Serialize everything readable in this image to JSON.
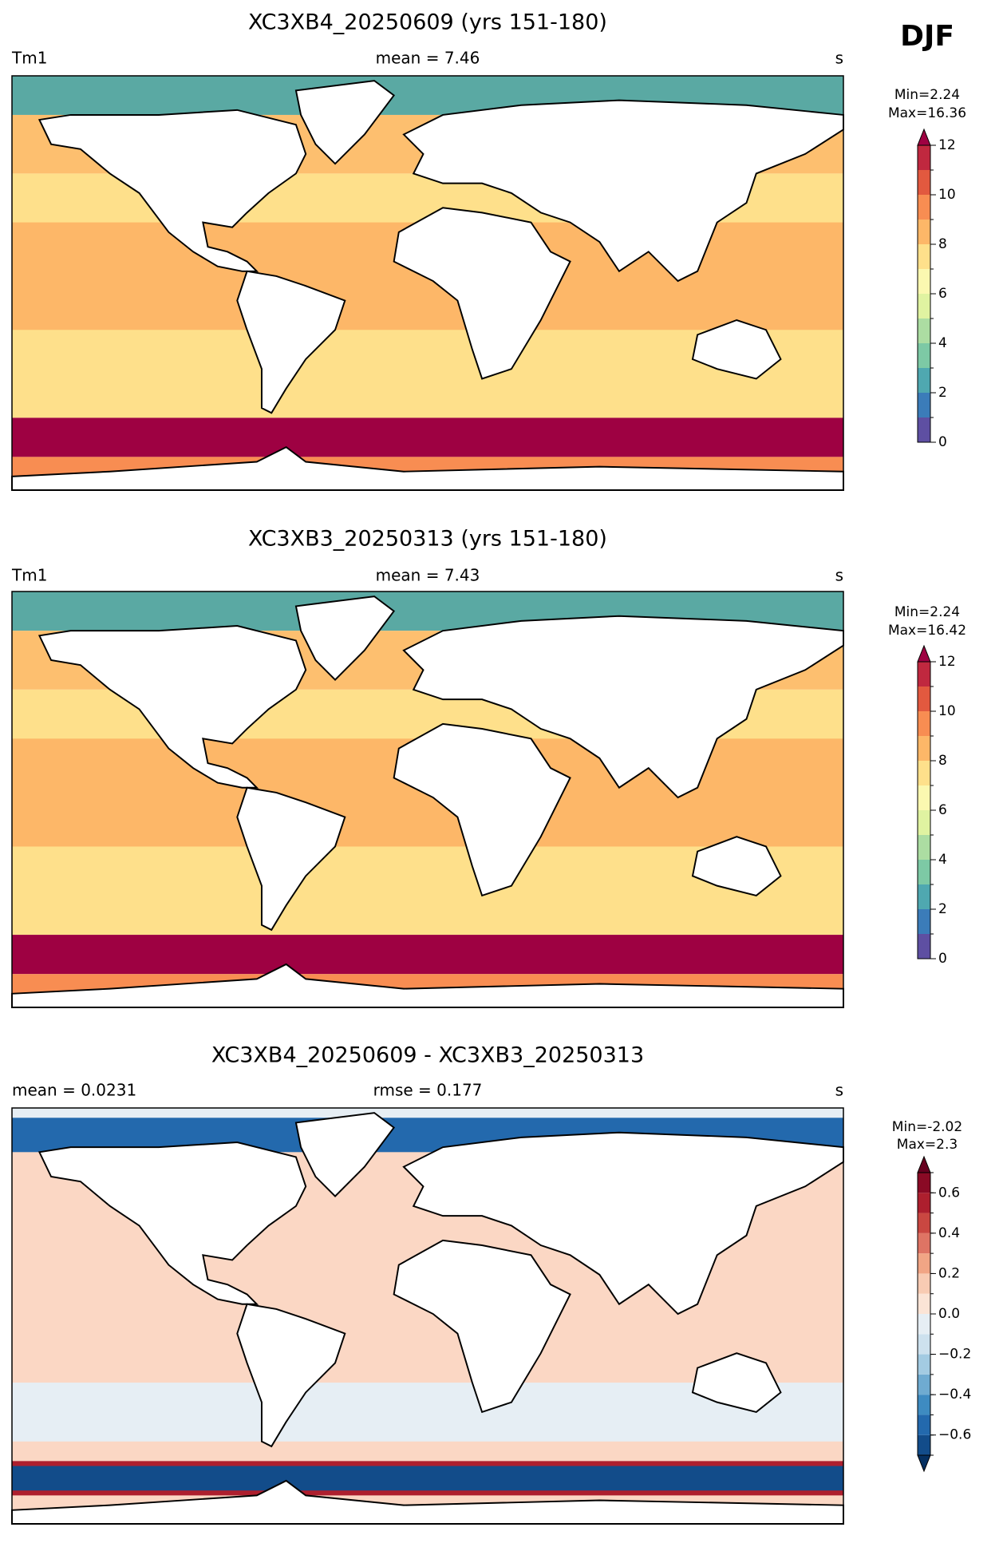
{
  "season": "DJF",
  "panels": [
    {
      "title": "XC3XB4_20250609 (yrs 151-180)",
      "left": "Tm1",
      "center": "mean = 7.46",
      "right": "s",
      "min": "Min=2.24",
      "max": "Max=16.36",
      "colorbar": {
        "lim": [
          0,
          12
        ],
        "ticks": [
          0,
          2,
          4,
          6,
          8,
          10,
          12
        ],
        "levels": [
          0,
          1,
          2,
          3,
          4,
          5,
          6,
          7,
          8,
          9,
          10,
          11,
          12
        ],
        "colors": [
          "#5e4fa2",
          "#3b7cb9",
          "#4fa8b0",
          "#7dc9a5",
          "#acdda2",
          "#e0f3a1",
          "#fbf8b0",
          "#fee08b",
          "#fdb768",
          "#f88d52",
          "#e2593f",
          "#c0283f"
        ],
        "extend": "max",
        "over_color": "#9e0142"
      }
    },
    {
      "title": "XC3XB3_20250313 (yrs 151-180)",
      "left": "Tm1",
      "center": "mean = 7.43",
      "right": "s",
      "min": "Min=2.24",
      "max": "Max=16.42",
      "colorbar": {
        "lim": [
          0,
          12
        ],
        "ticks": [
          0,
          2,
          4,
          6,
          8,
          10,
          12
        ],
        "levels": [
          0,
          1,
          2,
          3,
          4,
          5,
          6,
          7,
          8,
          9,
          10,
          11,
          12
        ],
        "colors": [
          "#5e4fa2",
          "#3b7cb9",
          "#4fa8b0",
          "#7dc9a5",
          "#acdda2",
          "#e0f3a1",
          "#fbf8b0",
          "#fee08b",
          "#fdb768",
          "#f88d52",
          "#e2593f",
          "#c0283f"
        ],
        "extend": "max",
        "over_color": "#9e0142"
      }
    },
    {
      "title": "XC3XB4_20250609 - XC3XB3_20250313",
      "left": "mean = 0.0231",
      "center": "rmse = 0.177",
      "right": "s",
      "min": "Min=-2.02",
      "max": "Max=2.3",
      "colorbar": {
        "lim": [
          -0.7,
          0.7
        ],
        "ticks": [
          {
            "value": -0.6,
            "label": "−0.6"
          },
          {
            "value": -0.4,
            "label": "−0.4"
          },
          {
            "value": -0.2,
            "label": "−0.2"
          },
          {
            "value": 0,
            "label": "0.0"
          },
          0.2,
          0.4,
          0.6
        ],
        "levels": [
          -0.7,
          -0.6,
          -0.5,
          -0.4,
          -0.3,
          -0.2,
          -0.1,
          0,
          0.1,
          0.2,
          0.3,
          0.4,
          0.5,
          0.6,
          0.7
        ],
        "colors": [
          "#124c8a",
          "#2369ad",
          "#3e8bc1",
          "#6fabd1",
          "#a3cbe2",
          "#cde1ee",
          "#e6eef4",
          "#fbe4d6",
          "#f8cbb3",
          "#f1a585",
          "#de7464",
          "#c94741",
          "#ad1f2e",
          "#8a0a25"
        ],
        "extend": "both",
        "under_color": "#053061",
        "over_color": "#67001f"
      }
    }
  ]
}
